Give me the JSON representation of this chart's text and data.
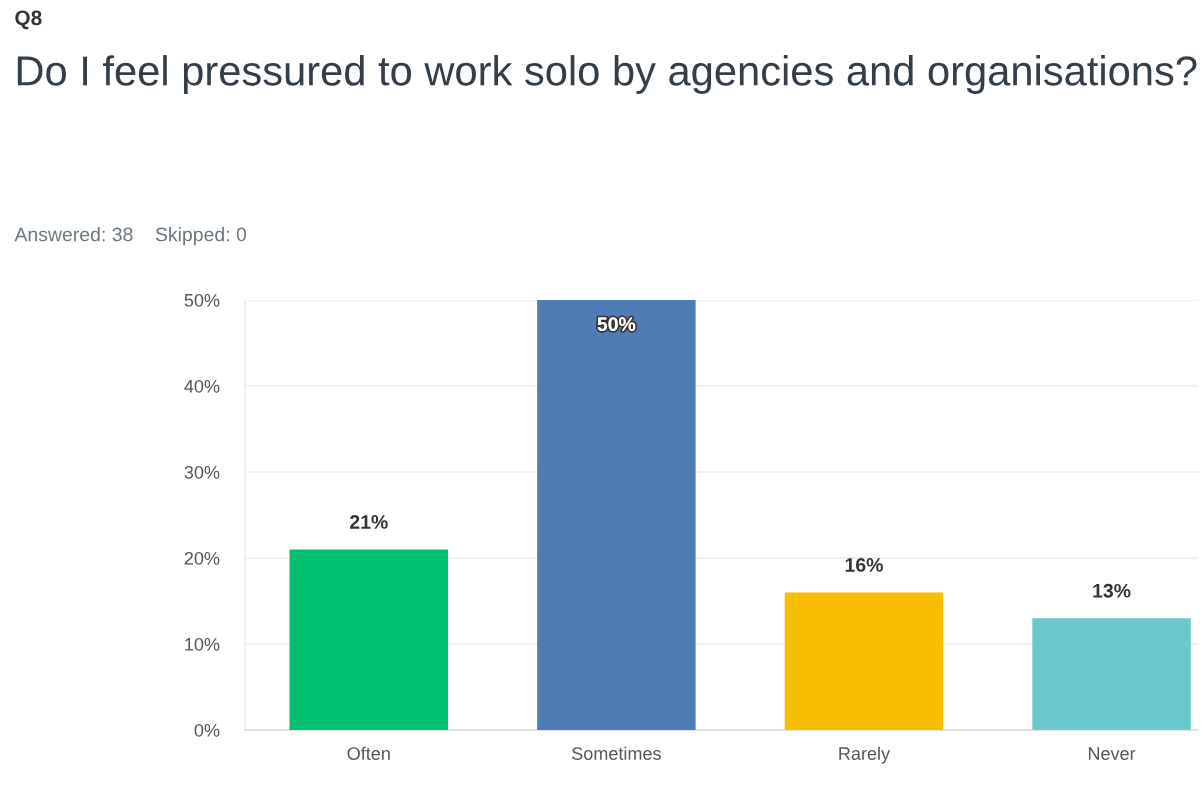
{
  "chart_data": {
    "type": "bar",
    "title": "Do I feel pressured to work solo by agencies and organisations?",
    "subtitle": "Answered: 38    Skipped: 0",
    "annotations": [
      "Q8"
    ],
    "categories": [
      "Often",
      "Sometimes",
      "Rarely",
      "Never"
    ],
    "values": [
      21,
      50,
      16,
      13
    ],
    "colors": [
      "#00bf6f",
      "#507cb6",
      "#f9be00",
      "#6bc8cd"
    ],
    "ylim": [
      0,
      50
    ],
    "yticks": [
      {
        "value": 0,
        "label": "0%"
      },
      {
        "value": 10,
        "label": "10%"
      },
      {
        "value": 20,
        "label": "20%"
      },
      {
        "value": 30,
        "label": "30%"
      },
      {
        "value": 40,
        "label": "40%"
      },
      {
        "value": 50,
        "label": "50%"
      }
    ],
    "value_labels": [
      "21%",
      "50%",
      "16%",
      "13%"
    ],
    "grid": "y",
    "legend": false
  }
}
